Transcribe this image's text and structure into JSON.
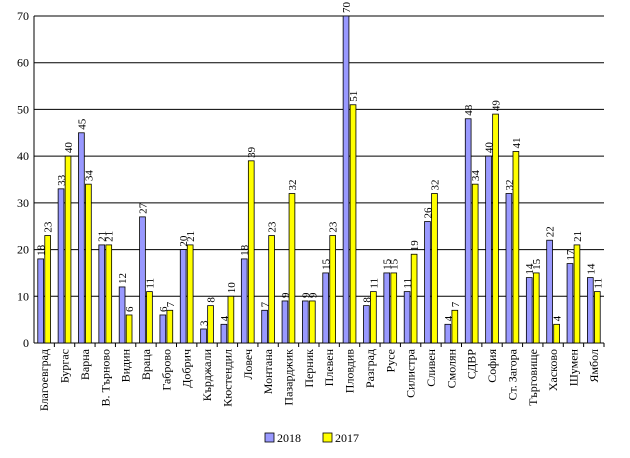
{
  "chart_data": {
    "type": "bar",
    "title": "",
    "xlabel": "",
    "ylabel": "",
    "ylim": [
      0,
      70
    ],
    "yticks": [
      0,
      10,
      20,
      30,
      40,
      50,
      60,
      70
    ],
    "grid": true,
    "legend_position": "bottom",
    "categories": [
      "Благоевград",
      "Бургас",
      "Варна",
      "В. Търново",
      "Видин",
      "Враца",
      "Габрово",
      "Добрич",
      "Кърджали",
      "Кюстендил",
      "Ловеч",
      "Монтана",
      "Пазарджик",
      "Перник",
      "Плевен",
      "Пловдив",
      "Разград",
      "Русе",
      "Силистра",
      "Сливен",
      "Смолян",
      "СДВР",
      "София",
      "Ст. Загора",
      "Търговище",
      "Хасково",
      "Шумен",
      "Ямбол"
    ],
    "series": [
      {
        "name": "2018",
        "color": "#9999ff",
        "values": [
          18,
          33,
          45,
          21,
          12,
          27,
          6,
          20,
          3,
          4,
          18,
          7,
          9,
          9,
          15,
          70,
          8,
          15,
          11,
          26,
          4,
          48,
          40,
          32,
          14,
          22,
          17,
          14
        ]
      },
      {
        "name": "2017",
        "color": "#ffff00",
        "values": [
          23,
          40,
          34,
          21,
          6,
          11,
          7,
          21,
          8,
          10,
          39,
          23,
          32,
          9,
          23,
          51,
          11,
          15,
          19,
          32,
          7,
          34,
          49,
          41,
          15,
          4,
          21,
          11
        ]
      }
    ]
  }
}
